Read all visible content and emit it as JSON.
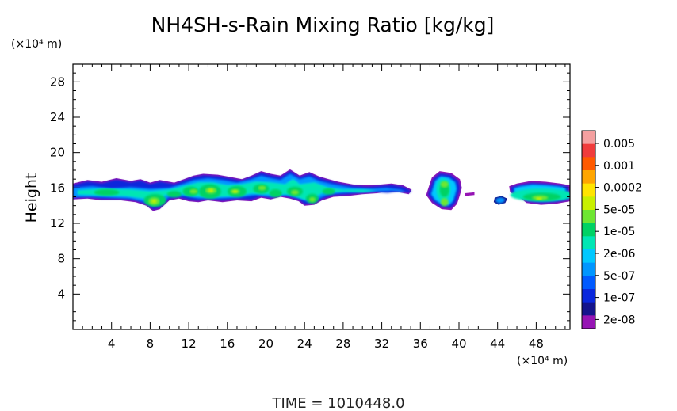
{
  "chart_data": {
    "type": "heatmap",
    "title": "NH4SH-s-Rain Mixing Ratio [kg/kg]",
    "ylabel": "Height",
    "xlabel": "",
    "x_unit_label": "(×10⁴ m)",
    "y_unit_label": "(×10⁴ m)",
    "xlim": [
      0,
      51.5
    ],
    "ylim": [
      0,
      30
    ],
    "x_ticks": [
      4,
      8,
      12,
      16,
      20,
      24,
      28,
      32,
      36,
      40,
      44,
      48
    ],
    "y_ticks": [
      4,
      8,
      12,
      16,
      20,
      24,
      28
    ],
    "colorbar": {
      "labels": [
        "0.005",
        "0.001",
        "0.0002",
        "5e-05",
        "1e-05",
        "2e-06",
        "5e-07",
        "1e-07",
        "2e-08"
      ],
      "colors": [
        "#f4a0a0",
        "#f03c3c",
        "#ff5a00",
        "#ffa500",
        "#ffe400",
        "#c8f000",
        "#6ee632",
        "#00d264",
        "#00e6b4",
        "#00c8ff",
        "#0096ff",
        "#005aff",
        "#0a28dc",
        "#14148c",
        "#9614b4"
      ]
    },
    "features": [
      {
        "x_range": [
          0,
          35
        ],
        "y_range": [
          13.5,
          18
        ],
        "note": "continuous cloud band"
      },
      {
        "x_range": [
          36.5,
          40.5
        ],
        "y_range": [
          13.5,
          18
        ],
        "note": "isolated cell"
      },
      {
        "x_range": [
          43.5,
          45
        ],
        "y_range": [
          14,
          15.1
        ],
        "note": "small patch"
      },
      {
        "x_range": [
          45,
          51.5
        ],
        "y_range": [
          14,
          16.8
        ],
        "note": "cloud band east"
      }
    ]
  },
  "footer": {
    "time_text": "TIME  =  1010448.0"
  }
}
